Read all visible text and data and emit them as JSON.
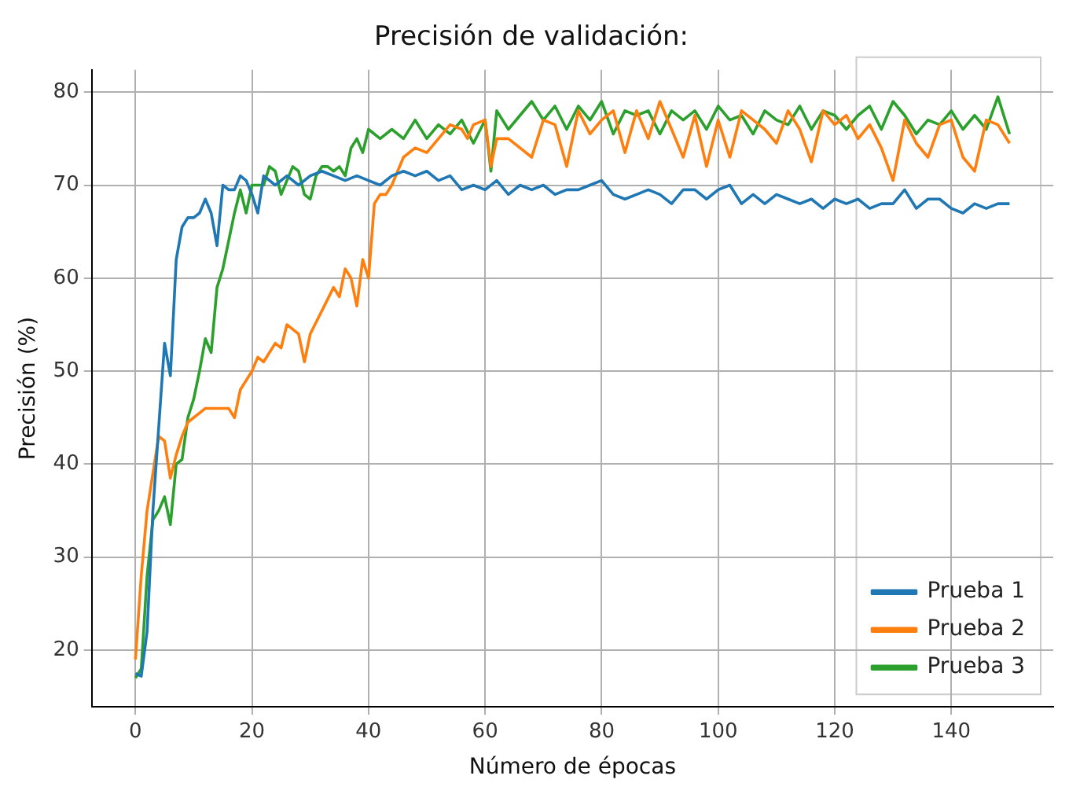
{
  "chart_data": {
    "type": "line",
    "title": "Precisión de validación:",
    "xlabel": "Número de épocas",
    "ylabel": "Precisión (%)",
    "xlim": [
      -7.5,
      157.5
    ],
    "xticks": [
      0,
      20,
      40,
      60,
      80,
      100,
      120,
      140
    ],
    "ylim": [
      13.9,
      82.4
    ],
    "yticks": [
      20,
      30,
      40,
      50,
      60,
      70,
      80
    ],
    "grid": true,
    "legend": "bottom right",
    "marker": "none",
    "line_style": "solid",
    "series": [
      {
        "name": "Prueba 1",
        "color": "#1f77b4",
        "x": [
          0,
          1,
          2,
          3,
          4,
          5,
          6,
          7,
          8,
          9,
          10,
          11,
          12,
          13,
          14,
          15,
          16,
          17,
          18,
          19,
          20,
          21,
          22,
          24,
          26,
          28,
          30,
          32,
          34,
          36,
          38,
          40,
          42,
          44,
          46,
          48,
          50,
          52,
          54,
          56,
          58,
          60,
          62,
          64,
          66,
          68,
          70,
          72,
          74,
          76,
          78,
          80,
          82,
          84,
          86,
          88,
          90,
          92,
          94,
          96,
          98,
          100,
          102,
          104,
          106,
          108,
          110,
          112,
          114,
          116,
          118,
          120,
          122,
          124,
          126,
          128,
          130,
          132,
          134,
          136,
          138,
          140,
          142,
          144,
          146,
          148,
          150
        ],
        "values": [
          17.5,
          17.2,
          22,
          35,
          44,
          53,
          49.5,
          62,
          65.5,
          66.5,
          66.5,
          67,
          68.5,
          67,
          63.5,
          70,
          69.5,
          69.5,
          71,
          70.5,
          69,
          67,
          71,
          70,
          71,
          70,
          71,
          71.5,
          71,
          70.5,
          71,
          70.5,
          70,
          71,
          71.5,
          71,
          71.5,
          70.5,
          71,
          69.5,
          70,
          69.5,
          70.5,
          69,
          70,
          69.5,
          70,
          69,
          69.5,
          69.5,
          70,
          70.5,
          69,
          68.5,
          69,
          69.5,
          69,
          68,
          69.5,
          69.5,
          68.5,
          69.5,
          70,
          68,
          69,
          68,
          69,
          68.5,
          68,
          68.5,
          67.5,
          68.5,
          68,
          68.5,
          67.5,
          68,
          68,
          69.5,
          67.5,
          68.5,
          68.5,
          67.5,
          67,
          68,
          67.5,
          68,
          68
        ]
      },
      {
        "name": "Prueba 2",
        "color": "#ff7f0e",
        "x": [
          0,
          1,
          2,
          3,
          4,
          5,
          6,
          7,
          8,
          9,
          10,
          11,
          12,
          14,
          16,
          17,
          18,
          20,
          21,
          22,
          24,
          25,
          26,
          28,
          29,
          30,
          32,
          34,
          35,
          36,
          37,
          38,
          39,
          40,
          41,
          42,
          43,
          44,
          46,
          48,
          50,
          52,
          54,
          56,
          57,
          58,
          60,
          61,
          62,
          64,
          66,
          68,
          70,
          72,
          74,
          76,
          78,
          80,
          82,
          84,
          86,
          88,
          90,
          92,
          94,
          96,
          98,
          100,
          102,
          104,
          106,
          108,
          110,
          112,
          114,
          116,
          118,
          120,
          122,
          124,
          126,
          128,
          130,
          132,
          134,
          136,
          138,
          140,
          142,
          144,
          146,
          148,
          150
        ],
        "values": [
          19,
          28,
          35,
          39,
          43,
          42.5,
          38.5,
          41,
          43,
          44.5,
          45,
          45.5,
          46,
          46,
          46,
          45,
          48,
          50,
          51.5,
          51,
          53,
          52.5,
          55,
          54,
          51,
          54,
          56.5,
          59,
          58,
          61,
          60,
          57,
          62,
          60,
          68,
          69,
          69,
          70,
          73,
          74,
          73.5,
          75,
          76.5,
          76,
          75,
          76.5,
          77,
          72,
          75,
          75,
          74,
          73,
          77,
          76.5,
          72,
          78,
          75.5,
          77,
          78,
          73.5,
          78,
          75,
          79,
          76,
          73,
          77.5,
          72,
          77,
          73,
          78,
          77,
          76,
          74.5,
          78,
          76,
          72.5,
          78,
          76.5,
          77.5,
          75,
          76.5,
          74,
          70.5,
          77,
          74.5,
          73,
          76.5,
          77,
          73,
          71.5,
          77,
          76.5,
          74.5
        ]
      },
      {
        "name": "Prueba 3",
        "color": "#2ca02c",
        "x": [
          0,
          1,
          2,
          3,
          4,
          5,
          6,
          7,
          8,
          9,
          10,
          11,
          12,
          13,
          14,
          15,
          16,
          17,
          18,
          19,
          20,
          21,
          22,
          23,
          24,
          25,
          26,
          27,
          28,
          29,
          30,
          31,
          32,
          33,
          34,
          35,
          36,
          37,
          38,
          39,
          40,
          42,
          44,
          46,
          48,
          50,
          52,
          54,
          56,
          58,
          60,
          61,
          62,
          64,
          66,
          68,
          70,
          72,
          74,
          76,
          78,
          80,
          82,
          84,
          86,
          88,
          90,
          92,
          94,
          96,
          98,
          100,
          102,
          104,
          106,
          108,
          110,
          112,
          114,
          116,
          118,
          120,
          122,
          124,
          126,
          128,
          130,
          132,
          134,
          136,
          138,
          140,
          142,
          144,
          146,
          148,
          150
        ],
        "values": [
          17,
          18,
          28,
          34,
          35,
          36.5,
          33.5,
          40,
          40.5,
          45,
          47,
          50,
          53.5,
          52,
          59,
          61,
          64,
          67,
          69.5,
          67,
          70,
          70,
          70,
          72,
          71.5,
          69,
          70.5,
          72,
          71.5,
          69,
          68.5,
          71,
          72,
          72,
          71.5,
          72,
          71,
          74,
          75,
          73.5,
          76,
          75,
          76,
          75,
          77,
          75,
          76.5,
          75.5,
          77,
          74.5,
          77,
          71.5,
          78,
          76,
          77.5,
          79,
          77,
          78.5,
          76,
          78.5,
          77,
          79,
          75.5,
          78,
          77.5,
          78,
          75.5,
          78,
          77,
          78,
          76,
          78.5,
          77,
          77.5,
          75.5,
          78,
          77,
          76.5,
          78.5,
          76,
          78,
          77.5,
          76,
          77.5,
          78.5,
          76,
          79,
          77.5,
          75.5,
          77,
          76.5,
          78,
          76,
          77.5,
          76,
          79.5,
          75.5
        ]
      }
    ]
  }
}
